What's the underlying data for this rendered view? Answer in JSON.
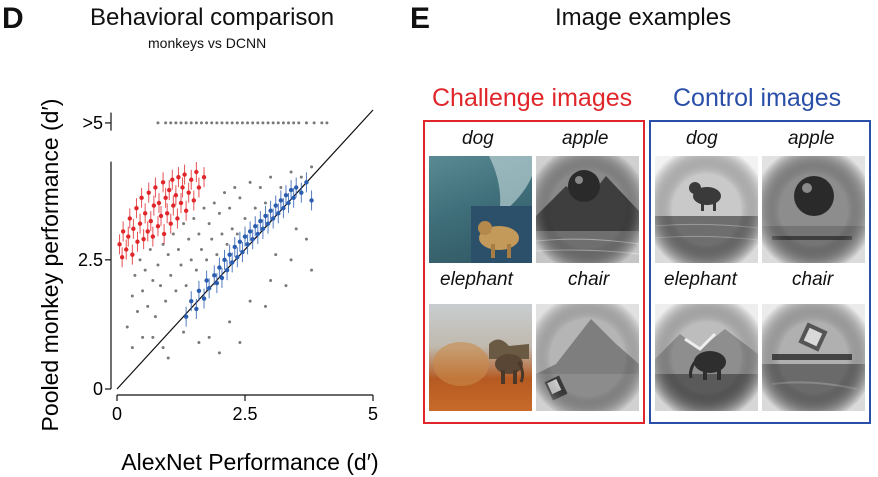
{
  "panel_d": {
    "letter": "D",
    "title": "Behavioral comparison",
    "subtitle": "monkeys vs DCNN"
  },
  "panel_e": {
    "letter": "E",
    "title": "Image examples",
    "challenge": {
      "title": "Challenge images",
      "color": "#e0262a",
      "labels": [
        "dog",
        "apple",
        "elephant",
        "chair"
      ]
    },
    "control": {
      "title": "Control images",
      "color": "#2a4fa8",
      "labels": [
        "dog",
        "apple",
        "elephant",
        "chair"
      ]
    }
  },
  "chart_data": {
    "type": "scatter",
    "xlabel": "AlexNet Performance (d′)",
    "ylabel": "Pooled monkey performance (d′)",
    "xlim": [
      0,
      5
    ],
    "ylim": [
      0,
      5.4
    ],
    "x_ticks": [
      0,
      2.5,
      5
    ],
    "x_tick_labels": [
      "0",
      "2.5",
      "5"
    ],
    "y_ticks": [
      0,
      2.5,
      5.15
    ],
    "y_tick_labels": [
      "0",
      "2.5",
      ">5"
    ],
    "grid": false,
    "unity_line": true,
    "series": [
      {
        "color": "#e0262a",
        "error_bars": true,
        "points": [
          [
            0.05,
            2.8
          ],
          [
            0.1,
            2.55
          ],
          [
            0.12,
            3.05
          ],
          [
            0.18,
            2.7
          ],
          [
            0.22,
            2.95
          ],
          [
            0.25,
            3.3
          ],
          [
            0.3,
            2.6
          ],
          [
            0.32,
            3.1
          ],
          [
            0.38,
            3.5
          ],
          [
            0.4,
            2.85
          ],
          [
            0.45,
            3.2
          ],
          [
            0.48,
            3.7
          ],
          [
            0.52,
            2.9
          ],
          [
            0.55,
            3.4
          ],
          [
            0.6,
            3.05
          ],
          [
            0.62,
            3.8
          ],
          [
            0.66,
            3.25
          ],
          [
            0.7,
            2.95
          ],
          [
            0.72,
            3.55
          ],
          [
            0.75,
            3.9
          ],
          [
            0.8,
            3.15
          ],
          [
            0.82,
            3.6
          ],
          [
            0.86,
            3.35
          ],
          [
            0.9,
            4.0
          ],
          [
            0.92,
            3.0
          ],
          [
            0.95,
            3.7
          ],
          [
            0.98,
            3.4
          ],
          [
            1.02,
            3.85
          ],
          [
            1.05,
            3.2
          ],
          [
            1.08,
            4.05
          ],
          [
            1.1,
            3.55
          ],
          [
            1.15,
            3.75
          ],
          [
            1.18,
            3.3
          ],
          [
            1.2,
            4.1
          ],
          [
            1.25,
            3.6
          ],
          [
            1.28,
            3.9
          ],
          [
            1.32,
            4.15
          ],
          [
            1.35,
            3.45
          ],
          [
            1.4,
            3.8
          ],
          [
            1.45,
            4.05
          ],
          [
            1.5,
            3.65
          ],
          [
            1.55,
            4.2
          ],
          [
            1.6,
            3.9
          ],
          [
            1.7,
            4.1
          ]
        ]
      },
      {
        "color": "#2a5db0",
        "error_bars": true,
        "points": [
          [
            1.35,
            1.4
          ],
          [
            1.45,
            1.7
          ],
          [
            1.55,
            1.55
          ],
          [
            1.6,
            1.9
          ],
          [
            1.7,
            1.75
          ],
          [
            1.75,
            2.1
          ],
          [
            1.8,
            1.95
          ],
          [
            1.9,
            2.2
          ],
          [
            1.95,
            2.05
          ],
          [
            2.0,
            2.35
          ],
          [
            2.05,
            2.15
          ],
          [
            2.1,
            2.5
          ],
          [
            2.15,
            2.3
          ],
          [
            2.2,
            2.6
          ],
          [
            2.25,
            2.45
          ],
          [
            2.3,
            2.75
          ],
          [
            2.35,
            2.55
          ],
          [
            2.4,
            2.85
          ],
          [
            2.45,
            2.65
          ],
          [
            2.5,
            2.95
          ],
          [
            2.55,
            2.8
          ],
          [
            2.6,
            3.05
          ],
          [
            2.65,
            2.9
          ],
          [
            2.7,
            3.15
          ],
          [
            2.75,
            3.0
          ],
          [
            2.8,
            3.25
          ],
          [
            2.85,
            3.1
          ],
          [
            2.9,
            3.35
          ],
          [
            2.95,
            3.2
          ],
          [
            3.0,
            3.45
          ],
          [
            3.05,
            3.3
          ],
          [
            3.1,
            3.55
          ],
          [
            3.15,
            3.4
          ],
          [
            3.2,
            3.65
          ],
          [
            3.25,
            3.5
          ],
          [
            3.3,
            3.75
          ],
          [
            3.35,
            3.6
          ],
          [
            3.4,
            3.85
          ],
          [
            3.45,
            3.7
          ],
          [
            3.5,
            3.9
          ],
          [
            3.6,
            3.8
          ],
          [
            3.7,
            4.0
          ],
          [
            3.8,
            3.65
          ]
        ]
      },
      {
        "color": "#7a7a7a",
        "error_bars": false,
        "points": [
          [
            0.2,
            1.2
          ],
          [
            0.3,
            1.8
          ],
          [
            0.35,
            2.2
          ],
          [
            0.4,
            1.5
          ],
          [
            0.45,
            2.5
          ],
          [
            0.5,
            1.9
          ],
          [
            0.55,
            2.3
          ],
          [
            0.6,
            1.6
          ],
          [
            0.65,
            2.7
          ],
          [
            0.7,
            2.1
          ],
          [
            0.75,
            1.4
          ],
          [
            0.8,
            2.4
          ],
          [
            0.85,
            2.0
          ],
          [
            0.9,
            2.8
          ],
          [
            0.95,
            1.7
          ],
          [
            1.0,
            2.6
          ],
          [
            1.05,
            2.2
          ],
          [
            1.1,
            3.0
          ],
          [
            1.15,
            1.9
          ],
          [
            1.2,
            2.7
          ],
          [
            1.25,
            2.4
          ],
          [
            1.3,
            3.2
          ],
          [
            1.35,
            2.0
          ],
          [
            1.4,
            2.9
          ],
          [
            1.45,
            2.5
          ],
          [
            1.5,
            3.3
          ],
          [
            1.55,
            2.3
          ],
          [
            1.6,
            3.0
          ],
          [
            1.65,
            2.7
          ],
          [
            1.7,
            3.5
          ],
          [
            1.75,
            2.5
          ],
          [
            1.8,
            3.2
          ],
          [
            1.85,
            2.9
          ],
          [
            1.9,
            3.6
          ],
          [
            1.95,
            2.6
          ],
          [
            2.0,
            3.4
          ],
          [
            2.05,
            3.0
          ],
          [
            2.1,
            3.8
          ],
          [
            2.15,
            2.8
          ],
          [
            2.2,
            3.5
          ],
          [
            2.25,
            3.1
          ],
          [
            2.3,
            3.9
          ],
          [
            2.35,
            3.0
          ],
          [
            2.4,
            3.7
          ],
          [
            2.5,
            3.3
          ],
          [
            2.6,
            4.0
          ],
          [
            2.7,
            3.5
          ],
          [
            2.8,
            3.9
          ],
          [
            2.9,
            3.6
          ],
          [
            3.0,
            4.1
          ],
          [
            3.2,
            3.9
          ],
          [
            3.4,
            4.2
          ],
          [
            3.6,
            4.1
          ],
          [
            3.8,
            4.3
          ],
          [
            0.5,
            1.0
          ],
          [
            0.9,
            0.8
          ],
          [
            1.3,
            1.1
          ],
          [
            1.8,
            1.0
          ],
          [
            2.2,
            1.3
          ],
          [
            2.6,
            1.7
          ],
          [
            3.0,
            2.1
          ],
          [
            3.4,
            2.5
          ],
          [
            3.7,
            2.9
          ],
          [
            1.0,
            0.6
          ],
          [
            1.6,
            0.9
          ],
          [
            2.4,
            0.9
          ],
          [
            2.9,
            1.6
          ],
          [
            3.3,
            2.0
          ],
          [
            0.3,
            0.8
          ],
          [
            0.7,
            1.0
          ],
          [
            2.0,
            0.7
          ],
          [
            3.1,
            2.6
          ],
          [
            3.5,
            3.1
          ],
          [
            3.8,
            2.3
          ]
        ]
      },
      {
        "color": "#7a7a7a",
        "error_bars": false,
        "label_note": "ceiling",
        "points": [
          [
            0.8,
            5.15
          ],
          [
            0.95,
            5.15
          ],
          [
            1.05,
            5.15
          ],
          [
            1.15,
            5.15
          ],
          [
            1.25,
            5.15
          ],
          [
            1.35,
            5.15
          ],
          [
            1.45,
            5.15
          ],
          [
            1.55,
            5.15
          ],
          [
            1.65,
            5.15
          ],
          [
            1.75,
            5.15
          ],
          [
            1.85,
            5.15
          ],
          [
            1.95,
            5.15
          ],
          [
            2.05,
            5.15
          ],
          [
            2.15,
            5.15
          ],
          [
            2.25,
            5.15
          ],
          [
            2.35,
            5.15
          ],
          [
            2.45,
            5.15
          ],
          [
            2.55,
            5.15
          ],
          [
            2.65,
            5.15
          ],
          [
            2.75,
            5.15
          ],
          [
            2.85,
            5.15
          ],
          [
            2.95,
            5.15
          ],
          [
            3.05,
            5.15
          ],
          [
            3.15,
            5.15
          ],
          [
            3.25,
            5.15
          ],
          [
            3.35,
            5.15
          ],
          [
            3.45,
            5.15
          ],
          [
            3.55,
            5.15
          ],
          [
            3.7,
            5.15
          ],
          [
            3.85,
            5.15
          ],
          [
            4.0,
            5.15
          ],
          [
            4.1,
            5.15
          ]
        ]
      }
    ]
  }
}
